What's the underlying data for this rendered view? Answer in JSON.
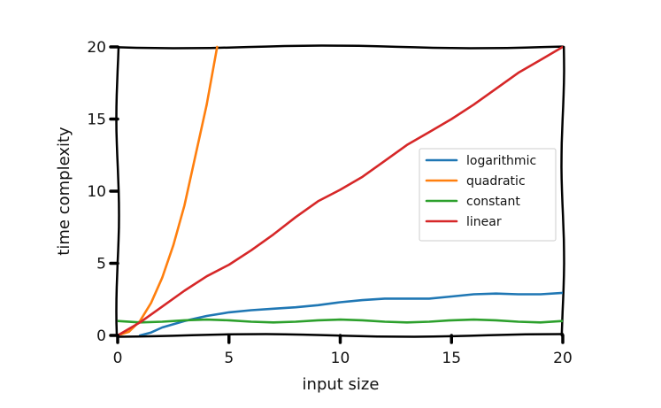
{
  "chart_data": {
    "type": "line",
    "title": "",
    "xlabel": "input size",
    "ylabel": "time complexity",
    "xlim": [
      0,
      20
    ],
    "ylim": [
      0,
      20
    ],
    "x_ticks": [
      0,
      5,
      10,
      15,
      20
    ],
    "y_ticks": [
      0,
      5,
      10,
      15,
      20
    ],
    "grid": false,
    "legend_position": "center-right",
    "style": "xkcd",
    "series": [
      {
        "name": "logarithmic",
        "color": "#1f77b4",
        "x": [
          1,
          1.5,
          2,
          3,
          4,
          5,
          6,
          7,
          8,
          9,
          10,
          11,
          12,
          13,
          14,
          15,
          16,
          17,
          18,
          19,
          20
        ],
        "y": [
          0,
          0.2,
          0.55,
          1.0,
          1.35,
          1.6,
          1.75,
          1.85,
          1.95,
          2.1,
          2.3,
          2.45,
          2.55,
          2.55,
          2.55,
          2.7,
          2.85,
          2.9,
          2.85,
          2.85,
          2.95
        ]
      },
      {
        "name": "quadratic",
        "color": "#ff7f0e",
        "x": [
          0,
          0.5,
          1,
          1.5,
          2,
          2.5,
          3,
          3.5,
          4,
          4.47
        ],
        "y": [
          0,
          0.25,
          1,
          2.25,
          4,
          6.25,
          9,
          12.5,
          16,
          20
        ]
      },
      {
        "name": "constant",
        "color": "#2ca02c",
        "x": [
          0,
          1,
          2,
          3,
          4,
          5,
          6,
          7,
          8,
          9,
          10,
          11,
          12,
          13,
          14,
          15,
          16,
          17,
          18,
          19,
          20
        ],
        "y": [
          1.0,
          0.9,
          0.95,
          1.05,
          1.1,
          1.05,
          0.95,
          0.9,
          0.95,
          1.05,
          1.1,
          1.05,
          0.95,
          0.9,
          0.95,
          1.05,
          1.1,
          1.05,
          0.95,
          0.9,
          1.0
        ]
      },
      {
        "name": "linear",
        "color": "#d62728",
        "x": [
          0,
          1,
          2,
          3,
          4,
          5,
          6,
          7,
          8,
          9,
          10,
          11,
          12,
          13,
          14,
          15,
          16,
          17,
          18,
          19,
          20
        ],
        "y": [
          0,
          0.9,
          2.0,
          3.1,
          4.1,
          4.9,
          5.9,
          7.0,
          8.2,
          9.3,
          10.1,
          11.0,
          12.1,
          13.2,
          14.1,
          15.0,
          16.0,
          17.1,
          18.2,
          19.1,
          20.0
        ]
      }
    ]
  }
}
